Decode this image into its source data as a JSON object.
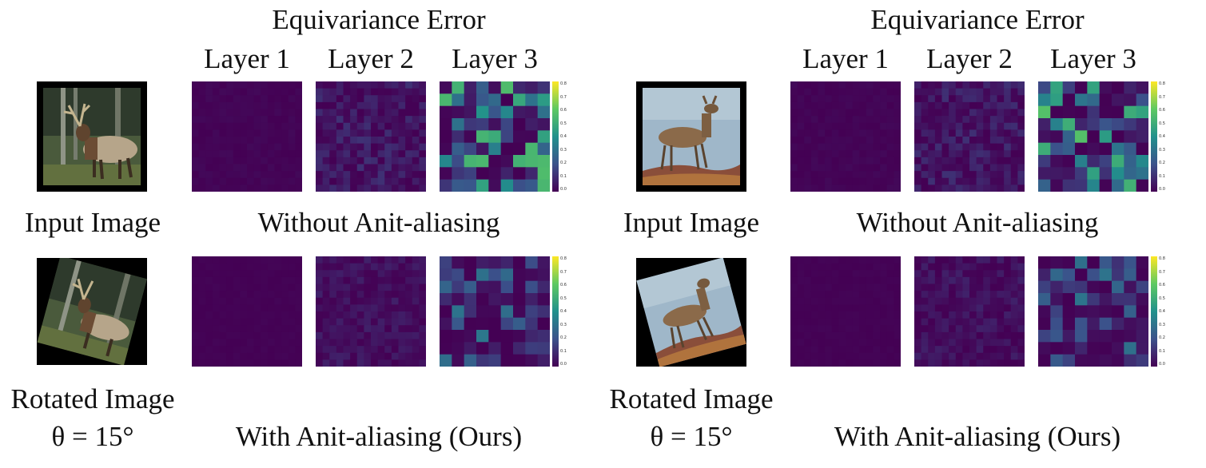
{
  "figure": {
    "panels": [
      {
        "equivariance_title": "Equivariance Error",
        "layer_labels": [
          "Layer 1",
          "Layer 2",
          "Layer 3"
        ],
        "input_label": "Input Image",
        "without_label": "Without Anit-aliasing",
        "rotated_label": "Rotated Image",
        "theta_label": "θ = 15°",
        "with_label": "With Anit-aliasing (Ours)",
        "subject": "elk"
      },
      {
        "equivariance_title": "Equivariance Error",
        "layer_labels": [
          "Layer 1",
          "Layer 2",
          "Layer 3"
        ],
        "input_label": "Input Image",
        "without_label": "Without Anit-aliasing",
        "rotated_label": "Rotated Image",
        "theta_label": "θ = 15°",
        "with_label": "With Anit-aliasing (Ours)",
        "subject": "deer"
      }
    ],
    "colorbar": {
      "ticks": [
        "0.8",
        "0.7",
        "0.6",
        "0.5",
        "0.4",
        "0.3",
        "0.2",
        "0.1",
        "0.0"
      ],
      "colormap": "viridis"
    },
    "rotation_degrees": 15
  }
}
